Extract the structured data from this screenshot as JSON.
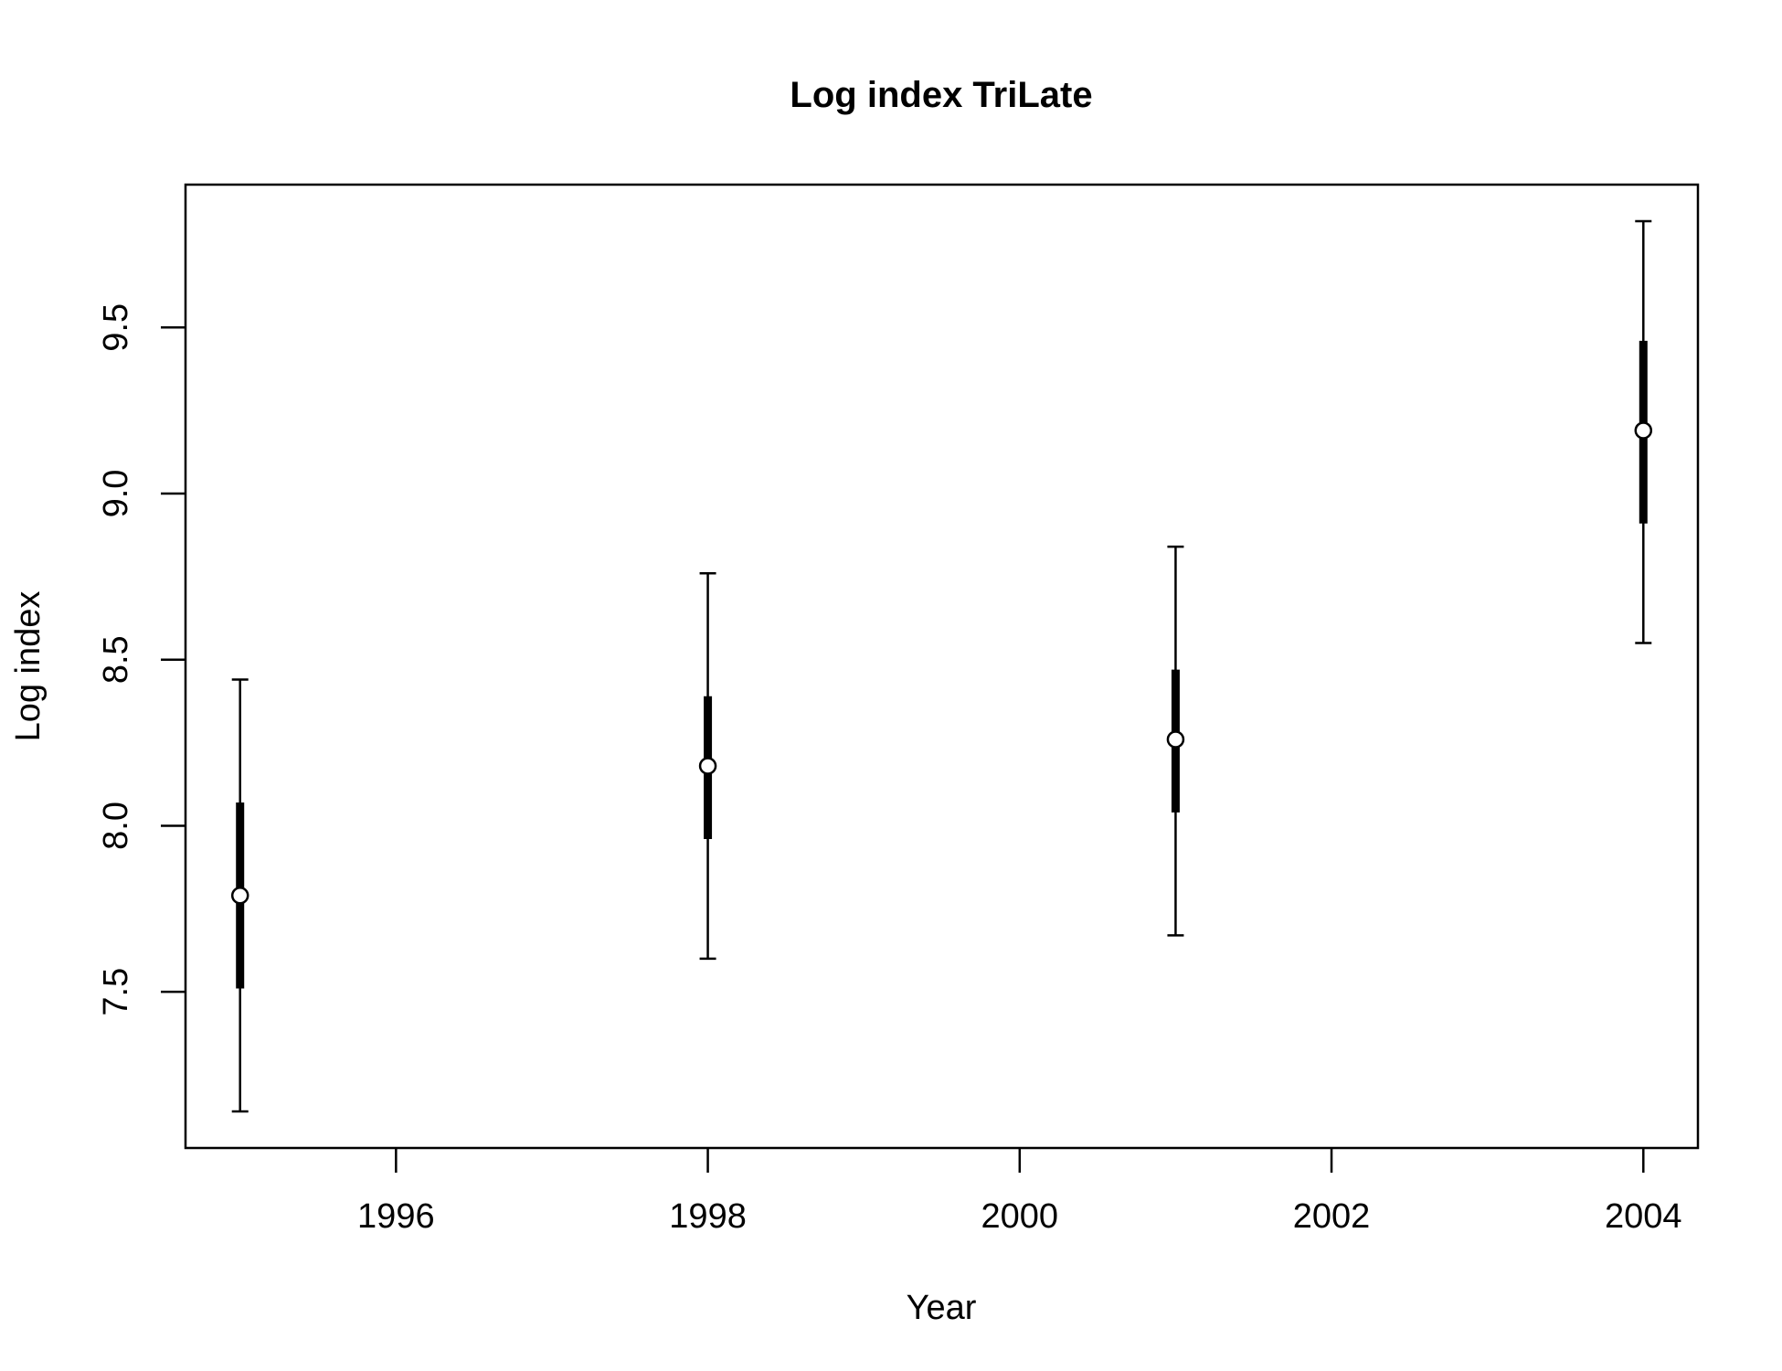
{
  "chart_data": {
    "type": "scatter",
    "title": "Log index TriLate",
    "xlabel": "Year",
    "ylabel": "Log index",
    "xlim": [
      1994.65,
      2004.35
    ],
    "ylim": [
      7.03,
      9.93
    ],
    "x_ticks": [
      {
        "value": 1996,
        "label": "1996"
      },
      {
        "value": 1998,
        "label": "1998"
      },
      {
        "value": 2000,
        "label": "2000"
      },
      {
        "value": 2002,
        "label": "2002"
      },
      {
        "value": 2004,
        "label": "2004"
      }
    ],
    "y_ticks": [
      {
        "value": 7.5,
        "label": "7.5"
      },
      {
        "value": 8.0,
        "label": "8.0"
      },
      {
        "value": 8.5,
        "label": "8.5"
      },
      {
        "value": 9.0,
        "label": "9.0"
      },
      {
        "value": 9.5,
        "label": "9.5"
      }
    ],
    "grid": false,
    "points": [
      {
        "x": 1995,
        "y": 7.79,
        "inner_low": 7.51,
        "inner_high": 8.07,
        "outer_low": 7.14,
        "outer_high": 8.44
      },
      {
        "x": 1998,
        "y": 8.18,
        "inner_low": 7.96,
        "inner_high": 8.39,
        "outer_low": 7.6,
        "outer_high": 8.76
      },
      {
        "x": 2001,
        "y": 8.26,
        "inner_low": 8.04,
        "inner_high": 8.47,
        "outer_low": 7.67,
        "outer_high": 8.84
      },
      {
        "x": 2004,
        "y": 9.19,
        "inner_low": 8.91,
        "inner_high": 9.46,
        "outer_low": 8.55,
        "outer_high": 9.82
      }
    ]
  }
}
